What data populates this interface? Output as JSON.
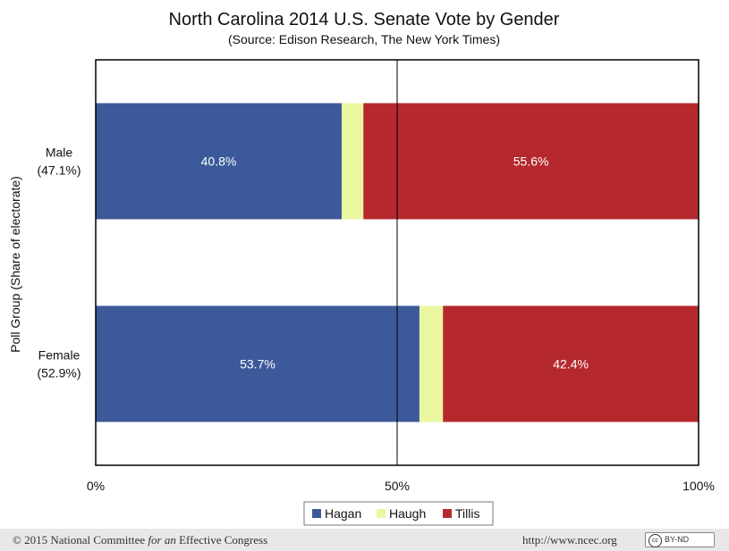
{
  "chart_data": {
    "type": "bar",
    "orientation": "horizontal",
    "stacked": true,
    "title": "North Carolina 2014 U.S. Senate Vote by Gender",
    "subtitle": "(Source: Edison Research, The New York Times)",
    "ylabel": "Poll Group (Share of electorate)",
    "categories": [
      {
        "name": "Male",
        "share": "(47.1%)"
      },
      {
        "name": "Female",
        "share": "(52.9%)"
      }
    ],
    "series": [
      {
        "name": "Hagan",
        "color": "#3c5a9a",
        "values": [
          40.8,
          53.7
        ],
        "labels": [
          "40.8%",
          "53.7%"
        ]
      },
      {
        "name": "Haugh",
        "color": "#eaf7a0",
        "values": [
          3.6,
          3.9
        ],
        "labels": [
          "",
          ""
        ]
      },
      {
        "name": "Tillis",
        "color": "#b5292e",
        "values": [
          55.6,
          42.4
        ],
        "labels": [
          "55.6%",
          "42.4%"
        ]
      }
    ],
    "xlim": [
      0,
      100
    ],
    "xticks": [
      {
        "value": 0,
        "label": "0%"
      },
      {
        "value": 50,
        "label": "50%"
      },
      {
        "value": 100,
        "label": "100%"
      }
    ],
    "reference_line": 50,
    "grid": false,
    "legend_position": "bottom"
  },
  "footer": {
    "copyright": "© 2015 National Committee",
    "copyright_italic": "for an",
    "copyright_end": "Effective Congress",
    "url": "http://www.ncec.org",
    "license": "BY-ND",
    "license_icon": "cc"
  }
}
